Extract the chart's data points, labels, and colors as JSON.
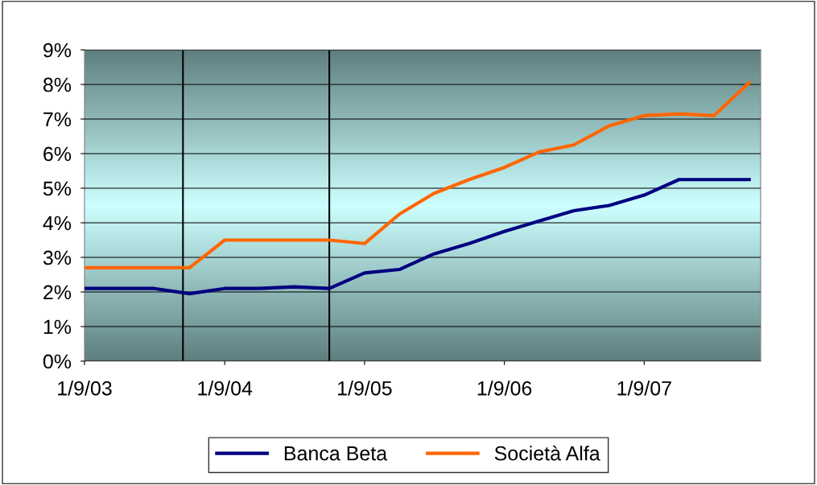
{
  "chart_data": {
    "type": "line",
    "x": [
      "2003-09-01",
      "2003-12-01",
      "2004-03-01",
      "2004-06-01",
      "2004-09-01",
      "2004-12-01",
      "2005-03-01",
      "2005-06-01",
      "2005-09-01",
      "2005-12-01",
      "2006-03-01",
      "2006-06-01",
      "2006-09-01",
      "2006-12-01",
      "2007-03-01",
      "2007-06-01",
      "2007-09-01",
      "2007-12-01",
      "2008-03-01",
      "2008-06-01"
    ],
    "series": [
      {
        "name": "Banca Beta",
        "color": "#000080",
        "values": [
          2.1,
          2.1,
          2.1,
          1.95,
          2.1,
          2.1,
          2.15,
          2.1,
          2.55,
          2.65,
          3.1,
          3.4,
          3.75,
          4.05,
          4.35,
          4.5,
          4.8,
          5.25,
          5.25,
          5.25
        ]
      },
      {
        "name": "Società Alfa",
        "color": "#ff6600",
        "values": [
          2.7,
          2.7,
          2.7,
          2.7,
          3.5,
          3.5,
          3.5,
          3.5,
          3.4,
          4.25,
          4.85,
          5.25,
          5.6,
          6.05,
          6.25,
          6.8,
          7.1,
          7.15,
          7.1,
          8.05
        ]
      }
    ],
    "xlim": [
      "2003-09-01",
      "2008-07-01"
    ],
    "xticks": [
      {
        "value": "2003-09-01",
        "label": "1/9/03"
      },
      {
        "value": "2004-09-01",
        "label": "1/9/04"
      },
      {
        "value": "2005-09-01",
        "label": "1/9/05"
      },
      {
        "value": "2006-09-01",
        "label": "1/9/06"
      },
      {
        "value": "2007-09-01",
        "label": "1/9/07"
      }
    ],
    "ylim": [
      0,
      9
    ],
    "yticks": [
      {
        "value": 0,
        "label": "0%"
      },
      {
        "value": 1,
        "label": "1%"
      },
      {
        "value": 2,
        "label": "2%"
      },
      {
        "value": 3,
        "label": "3%"
      },
      {
        "value": 4,
        "label": "4%"
      },
      {
        "value": 5,
        "label": "5%"
      },
      {
        "value": 6,
        "label": "6%"
      },
      {
        "value": 7,
        "label": "7%"
      },
      {
        "value": 8,
        "label": "8%"
      },
      {
        "value": 9,
        "label": "9%"
      }
    ],
    "ref_lines": [
      {
        "axis": "x",
        "value": "2004-05-15",
        "color": "#000000"
      },
      {
        "axis": "x",
        "value": "2005-06-01",
        "color": "#000000"
      }
    ],
    "grid": "y",
    "legend": "bottom",
    "marker": "none",
    "line_style": "solid"
  }
}
